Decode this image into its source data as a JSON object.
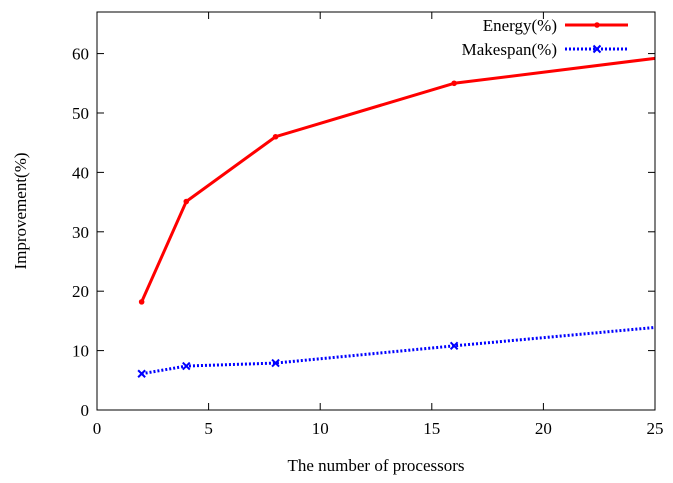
{
  "chart_data": {
    "type": "line",
    "title": "",
    "xlabel": "The number of processors",
    "ylabel": "Improvement(%)",
    "xlim": [
      0,
      25
    ],
    "ylim": [
      0,
      67
    ],
    "xticks": [
      0,
      5,
      10,
      15,
      20,
      25
    ],
    "yticks": [
      0,
      10,
      20,
      30,
      40,
      50,
      60
    ],
    "xtick_labels": [
      "0",
      "5",
      "10",
      "15",
      "20",
      "25"
    ],
    "ytick_labels": [
      "0",
      "10",
      "20",
      "30",
      "40",
      "50",
      "60"
    ],
    "grid": false,
    "legend_position": "top-right",
    "series": [
      {
        "name": "Energy(%)",
        "color": "#ff0000",
        "line_style": "solid",
        "marker": "dot",
        "x": [
          2,
          4,
          8,
          16,
          25
        ],
        "y": [
          18.2,
          35.1,
          46.0,
          55.0,
          59.2
        ]
      },
      {
        "name": "Makespan(%)",
        "color": "#0000ff",
        "line_style": "dotted",
        "marker": "x",
        "x": [
          2,
          4,
          8,
          16,
          25
        ],
        "y": [
          6.1,
          7.4,
          7.9,
          10.8,
          13.9
        ]
      }
    ]
  }
}
